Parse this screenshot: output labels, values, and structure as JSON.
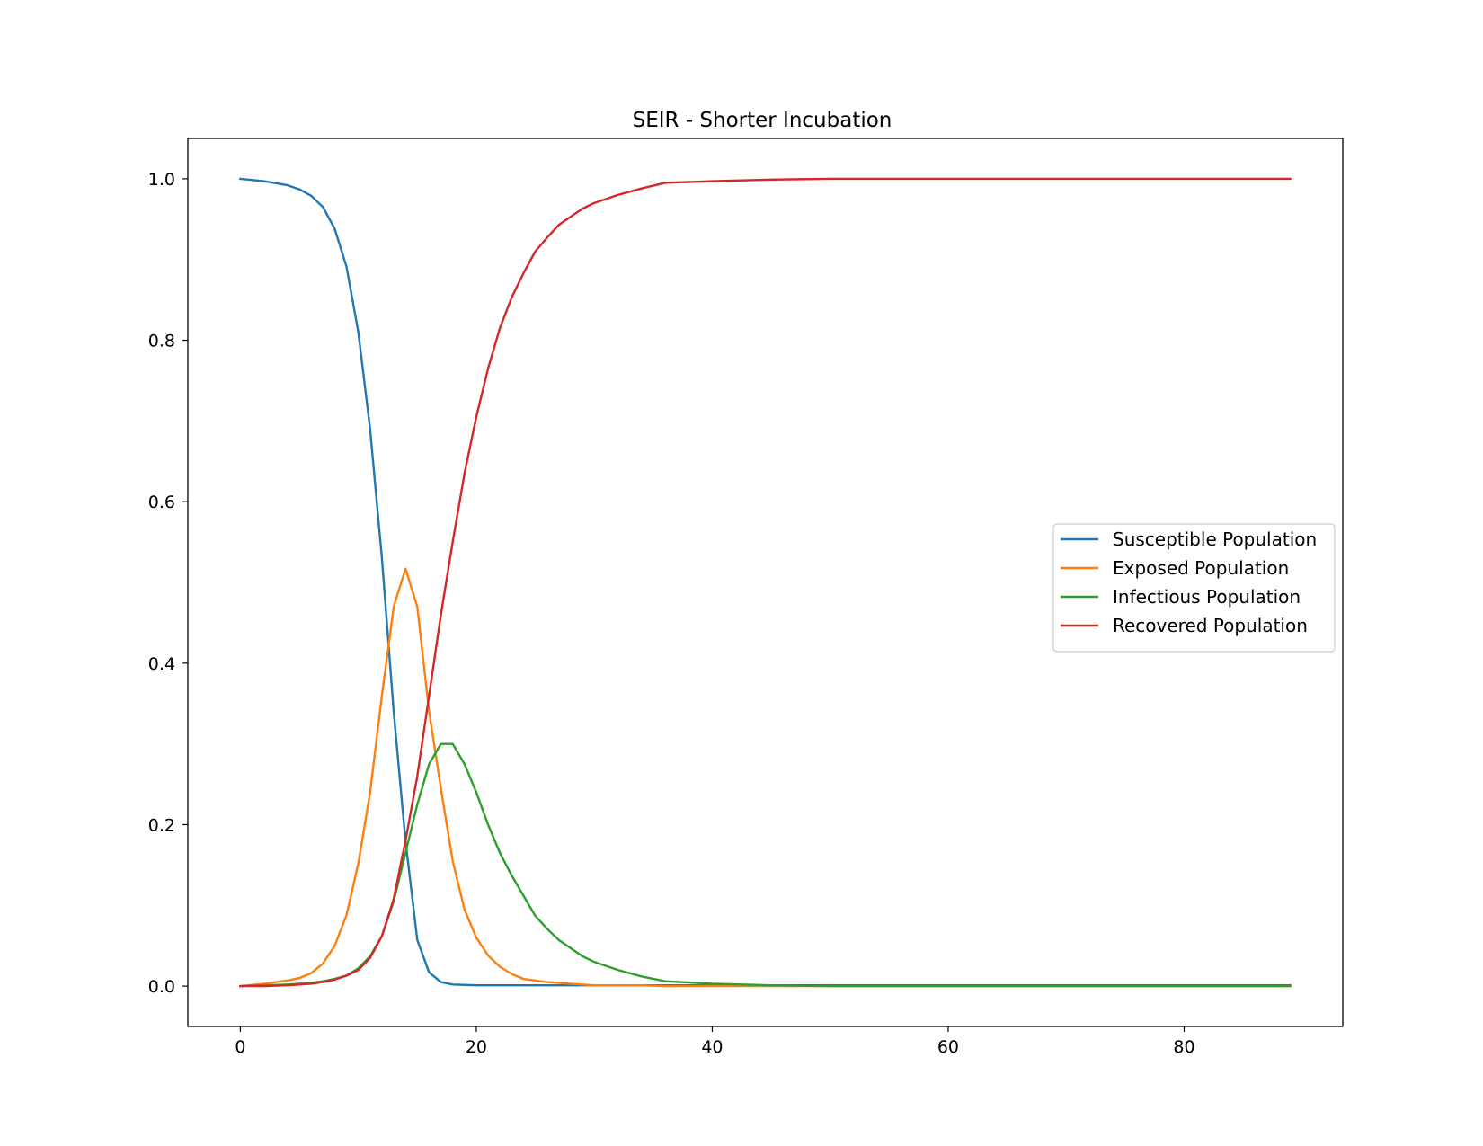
{
  "chart_data": {
    "type": "line",
    "title": "SEIR - Shorter Incubation",
    "xlabel": "",
    "ylabel": "",
    "xlim": [
      -4.45,
      93.45
    ],
    "ylim": [
      -0.05,
      1.05
    ],
    "xticks": [
      0,
      20,
      40,
      60,
      80
    ],
    "xtick_labels": [
      "0",
      "20",
      "40",
      "60",
      "80"
    ],
    "yticks": [
      0.0,
      0.2,
      0.4,
      0.6,
      0.8,
      1.0
    ],
    "ytick_labels": [
      "0.0",
      "0.2",
      "0.4",
      "0.6",
      "0.8",
      "1.0"
    ],
    "grid": false,
    "legend_position": "center-right",
    "x": [
      0,
      2,
      4,
      5,
      6,
      7,
      8,
      9,
      10,
      11,
      12,
      13,
      14,
      15,
      16,
      17,
      18,
      19,
      20,
      21,
      22,
      23,
      24,
      25,
      26,
      27,
      28,
      29,
      30,
      32,
      34,
      36,
      40,
      45,
      50,
      60,
      70,
      80,
      89
    ],
    "series": [
      {
        "name": "Susceptible Population",
        "color": "#1f77b4",
        "values": [
          1.0,
          0.997,
          0.992,
          0.987,
          0.979,
          0.965,
          0.938,
          0.891,
          0.81,
          0.69,
          0.53,
          0.34,
          0.18,
          0.057,
          0.017,
          0.005,
          0.002,
          0.0015,
          0.001,
          0.001,
          0.001,
          0.001,
          0.001,
          0.001,
          0.001,
          0.001,
          0.001,
          0.001,
          0.001,
          0.001,
          0.001,
          0.001,
          0.001,
          0.001,
          0.001,
          0.001,
          0.001,
          0.001,
          0.001
        ]
      },
      {
        "name": "Exposed Population",
        "color": "#ff7f0e",
        "values": [
          0.0,
          0.003,
          0.007,
          0.01,
          0.016,
          0.028,
          0.05,
          0.088,
          0.152,
          0.24,
          0.36,
          0.47,
          0.517,
          0.47,
          0.34,
          0.245,
          0.155,
          0.095,
          0.06,
          0.038,
          0.024,
          0.015,
          0.009,
          0.007,
          0.005,
          0.004,
          0.003,
          0.002,
          0.001,
          0.001,
          0.001,
          0.0,
          0.0,
          0.0,
          0.0,
          0.0,
          0.0,
          0.0,
          0.0
        ]
      },
      {
        "name": "Infectious Population",
        "color": "#2ca02c",
        "values": [
          0.0,
          0.001,
          0.002,
          0.003,
          0.004,
          0.006,
          0.009,
          0.013,
          0.022,
          0.037,
          0.062,
          0.105,
          0.165,
          0.225,
          0.275,
          0.3,
          0.3,
          0.275,
          0.24,
          0.2,
          0.165,
          0.137,
          0.112,
          0.087,
          0.071,
          0.057,
          0.047,
          0.037,
          0.03,
          0.02,
          0.012,
          0.006,
          0.003,
          0.001,
          0.0,
          0.0,
          0.0,
          0.0,
          0.0
        ]
      },
      {
        "name": "Recovered Population",
        "color": "#d62728",
        "values": [
          0.0,
          0.0,
          0.001,
          0.002,
          0.003,
          0.005,
          0.008,
          0.013,
          0.02,
          0.035,
          0.062,
          0.108,
          0.18,
          0.26,
          0.36,
          0.46,
          0.55,
          0.635,
          0.705,
          0.765,
          0.815,
          0.853,
          0.883,
          0.91,
          0.927,
          0.943,
          0.953,
          0.963,
          0.97,
          0.98,
          0.988,
          0.995,
          0.997,
          0.999,
          1.0,
          1.0,
          1.0,
          1.0,
          1.0
        ]
      }
    ]
  }
}
